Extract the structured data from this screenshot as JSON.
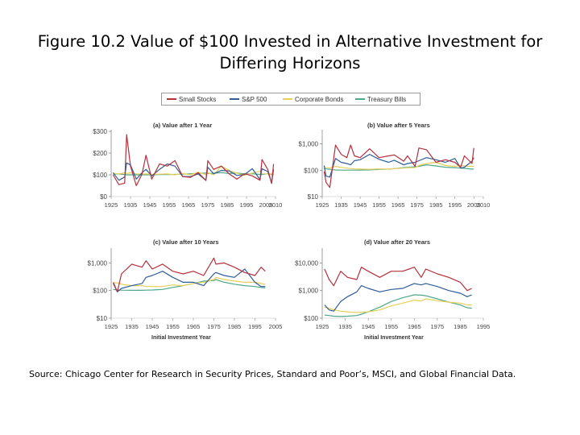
{
  "figure": {
    "title_line1": "Figure 10.2  Value of $100 Invested in Alternative Investment for",
    "title_line2": "Differing Horizons",
    "source": "Source: Chicago Center for Research in Security Prices, Standard and Poor’s, MSCI, and Global Financial Data.",
    "x_axis_title": "Initial Investment Year"
  },
  "legend": [
    {
      "name": "Small Stocks",
      "color": "#b5303c"
    },
    {
      "name": "S&P 500",
      "color": "#2f5d99"
    },
    {
      "name": "Corporate Bonds",
      "color": "#e8cf5a"
    },
    {
      "name": "Treasury Bills",
      "color": "#4ea889"
    }
  ],
  "chart_data": [
    {
      "type": "line",
      "title": "(a) Value after 1 Year",
      "log_scale": false,
      "y_ticks": [
        "$300",
        "$200",
        "$100",
        "$0"
      ],
      "y_tick_values": [
        300,
        200,
        100,
        0
      ],
      "ylim": [
        0,
        300
      ],
      "x_ticks": [
        "1925",
        "1935",
        "1945",
        "1955",
        "1965",
        "1975",
        "1985",
        "1995",
        "2005",
        "2010"
      ],
      "xlim": [
        1925,
        2010
      ],
      "x": [
        1926,
        1929,
        1932,
        1933,
        1935,
        1938,
        1941,
        1943,
        1946,
        1950,
        1954,
        1958,
        1962,
        1966,
        1970,
        1974,
        1975,
        1978,
        1982,
        1986,
        1990,
        1994,
        1998,
        2002,
        2003,
        2006,
        2008,
        2009
      ],
      "series": [
        {
          "name": "Small Stocks",
          "values": [
            100,
            55,
            62,
            285,
            140,
            50,
            105,
            190,
            80,
            150,
            140,
            165,
            92,
            88,
            110,
            74,
            165,
            125,
            140,
            105,
            80,
            105,
            95,
            75,
            170,
            125,
            60,
            150
          ]
        },
        {
          "name": "S&P 500",
          "values": [
            110,
            75,
            90,
            155,
            145,
            80,
            110,
            125,
            95,
            125,
            150,
            140,
            92,
            92,
            104,
            74,
            135,
            105,
            120,
            118,
            97,
            101,
            128,
            78,
            128,
            115,
            63,
            126
          ]
        },
        {
          "name": "Corporate Bonds",
          "values": [
            107,
            104,
            110,
            106,
            109,
            104,
            103,
            104,
            102,
            103,
            104,
            100,
            106,
            100,
            112,
            101,
            109,
            100,
            140,
            120,
            107,
            98,
            108,
            116,
            105,
            104,
            104,
            116
          ]
        },
        {
          "name": "Treasury Bills",
          "values": [
            103,
            104,
            101,
            100,
            100,
            100,
            100,
            100,
            100,
            101,
            101,
            102,
            103,
            105,
            107,
            108,
            106,
            107,
            110,
            106,
            108,
            104,
            105,
            102,
            101,
            105,
            102,
            100
          ]
        }
      ]
    },
    {
      "type": "line",
      "title": "(b) Value after 5 Years",
      "log_scale": true,
      "y_ticks": [
        "$1,000",
        "$100",
        "$10"
      ],
      "y_tick_values": [
        1000,
        100,
        10
      ],
      "ylim": [
        10,
        3000
      ],
      "x_ticks": [
        "1925",
        "1935",
        "1945",
        "1955",
        "1965",
        "1975",
        "1985",
        "1995",
        "2005",
        "2010"
      ],
      "xlim": [
        1925,
        2010
      ],
      "x": [
        1926,
        1927,
        1929,
        1932,
        1935,
        1938,
        1940,
        1942,
        1945,
        1950,
        1955,
        1960,
        1963,
        1968,
        1970,
        1974,
        1976,
        1980,
        1985,
        1990,
        1995,
        1998,
        2000,
        2004,
        2005
      ],
      "series": [
        {
          "name": "Small Stocks",
          "values": [
            90,
            35,
            22,
            900,
            400,
            300,
            900,
            350,
            300,
            650,
            300,
            350,
            380,
            220,
            350,
            140,
            700,
            600,
            200,
            250,
            200,
            130,
            350,
            180,
            700
          ]
        },
        {
          "name": "S&P 500",
          "values": [
            150,
            60,
            55,
            280,
            200,
            180,
            160,
            230,
            250,
            400,
            260,
            200,
            240,
            160,
            180,
            200,
            230,
            300,
            250,
            200,
            280,
            120,
            130,
            220,
            300
          ]
        },
        {
          "name": "Corporate Bonds",
          "values": [
            130,
            125,
            120,
            140,
            128,
            120,
            115,
            112,
            110,
            108,
            112,
            110,
            115,
            120,
            125,
            125,
            150,
            180,
            200,
            150,
            140,
            150,
            145,
            140,
            140
          ]
        },
        {
          "name": "Treasury Bills",
          "values": [
            115,
            112,
            108,
            102,
            101,
            101,
            101,
            101,
            101,
            103,
            107,
            110,
            115,
            125,
            130,
            135,
            140,
            160,
            145,
            130,
            125,
            120,
            118,
            110,
            112
          ]
        }
      ]
    },
    {
      "type": "line",
      "title": "(c) Value after 10 Years",
      "log_scale": true,
      "y_ticks": [
        "$1,000",
        "$100",
        "$10"
      ],
      "y_tick_values": [
        1000,
        100,
        10
      ],
      "ylim": [
        10,
        3000
      ],
      "x_ticks": [
        "1925",
        "1935",
        "1945",
        "1955",
        "1965",
        "1975",
        "1985",
        "1995",
        "2005"
      ],
      "xlim": [
        1925,
        2005
      ],
      "x": [
        1926,
        1928,
        1930,
        1935,
        1940,
        1942,
        1945,
        1950,
        1955,
        1960,
        1965,
        1970,
        1975,
        1976,
        1980,
        1985,
        1990,
        1995,
        1998,
        2000
      ],
      "series": [
        {
          "name": "Small Stocks",
          "values": [
            200,
            90,
            400,
            900,
            700,
            1200,
            600,
            900,
            500,
            400,
            500,
            350,
            1500,
            900,
            1000,
            700,
            450,
            350,
            700,
            500
          ]
        },
        {
          "name": "S&P 500",
          "values": [
            180,
            90,
            120,
            150,
            180,
            300,
            350,
            500,
            300,
            200,
            200,
            150,
            400,
            450,
            350,
            300,
            600,
            200,
            140,
            140
          ]
        },
        {
          "name": "Corporate Bonds",
          "values": [
            190,
            190,
            170,
            150,
            150,
            140,
            140,
            140,
            160,
            150,
            180,
            200,
            250,
            300,
            250,
            220,
            200,
            200,
            180,
            170
          ]
        },
        {
          "name": "Treasury Bills",
          "values": [
            110,
            105,
            103,
            102,
            102,
            103,
            105,
            110,
            130,
            150,
            180,
            220,
            230,
            250,
            200,
            170,
            150,
            140,
            130,
            125
          ]
        }
      ]
    },
    {
      "type": "line",
      "title": "(d) Value after 20 Years",
      "log_scale": true,
      "y_ticks": [
        "$10,000",
        "$1,000",
        "$100"
      ],
      "y_tick_values": [
        10000,
        1000,
        100
      ],
      "ylim": [
        100,
        30000
      ],
      "x_ticks": [
        "1925",
        "1935",
        "1945",
        "1955",
        "1965",
        "1975",
        "1985",
        "1995"
      ],
      "xlim": [
        1925,
        1995
      ],
      "x": [
        1926,
        1928,
        1930,
        1933,
        1936,
        1940,
        1942,
        1945,
        1950,
        1955,
        1960,
        1965,
        1968,
        1970,
        1975,
        1980,
        1985,
        1988,
        1990
      ],
      "series": [
        {
          "name": "Small Stocks",
          "values": [
            6000,
            2500,
            1500,
            5000,
            3000,
            2500,
            7000,
            5000,
            3000,
            5000,
            5000,
            7000,
            3000,
            6000,
            4000,
            3000,
            2000,
            1000,
            1200
          ]
        },
        {
          "name": "S&P 500",
          "values": [
            300,
            200,
            180,
            400,
            600,
            900,
            1500,
            1200,
            900,
            1100,
            1200,
            1800,
            1600,
            1800,
            1400,
            1000,
            800,
            600,
            700
          ]
        },
        {
          "name": "Corporate Bonds",
          "values": [
            250,
            230,
            200,
            180,
            170,
            160,
            165,
            170,
            200,
            280,
            350,
            450,
            420,
            500,
            430,
            380,
            350,
            300,
            300
          ]
        },
        {
          "name": "Treasury Bills",
          "values": [
            130,
            125,
            118,
            115,
            118,
            125,
            140,
            170,
            250,
            400,
            550,
            700,
            680,
            650,
            500,
            380,
            300,
            240,
            230
          ]
        }
      ]
    }
  ]
}
